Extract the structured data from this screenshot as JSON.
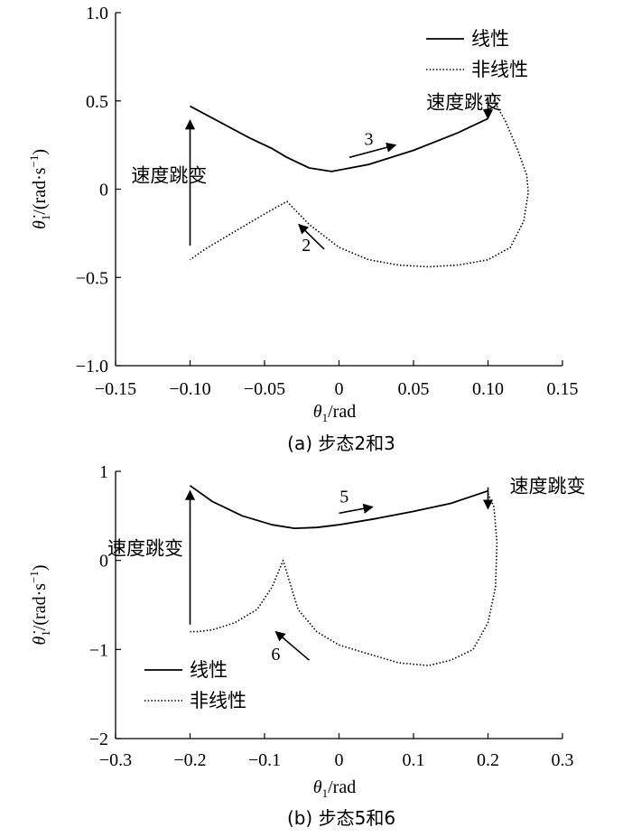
{
  "chart_data": [
    {
      "type": "line",
      "caption": "(a) 步态2和3",
      "xlabel": "θ1/rad",
      "ylabel": "θ̇1/(rad·s⁻¹)",
      "xlim": [
        -0.15,
        0.15
      ],
      "ylim": [
        -1.0,
        1.0
      ],
      "xticks": [
        "−0.15",
        "−0.10",
        "−0.05",
        "0",
        "0.05",
        "0.10",
        "0.15"
      ],
      "xtick_values": [
        -0.15,
        -0.1,
        -0.05,
        0,
        0.05,
        0.1,
        0.15
      ],
      "yticks": [
        "1.0",
        "0.5",
        "0",
        "−0.5",
        "−1.0"
      ],
      "ytick_values": [
        1.0,
        0.5,
        0,
        -0.5,
        -1.0
      ],
      "legend": [
        "线性",
        "非线性"
      ],
      "legend_position": "top-right",
      "series": [
        {
          "name": "线性",
          "style": "solid",
          "x": [
            -0.1,
            -0.08,
            -0.06,
            -0.045,
            -0.035,
            -0.02,
            -0.005,
            0.02,
            0.05,
            0.08,
            0.1
          ],
          "y": [
            0.47,
            0.38,
            0.29,
            0.23,
            0.18,
            0.12,
            0.1,
            0.14,
            0.22,
            0.32,
            0.4
          ]
        },
        {
          "name": "非线性",
          "style": "dotted",
          "x": [
            0.1,
            0.104,
            0.112,
            0.12,
            0.126,
            0.127,
            0.124,
            0.115,
            0.1,
            0.08,
            0.06,
            0.04,
            0.02,
            0.0,
            -0.02,
            -0.035,
            -0.05,
            -0.07,
            -0.09,
            -0.1
          ],
          "y": [
            0.45,
            0.5,
            0.38,
            0.22,
            0.08,
            -0.02,
            -0.18,
            -0.33,
            -0.4,
            -0.43,
            -0.44,
            -0.43,
            -0.4,
            -0.33,
            -0.2,
            -0.07,
            -0.14,
            -0.24,
            -0.34,
            -0.4
          ]
        }
      ],
      "annotations": [
        {
          "text": "速度跳变",
          "x": -0.114,
          "y": 0.04
        },
        {
          "text": "速度跳变",
          "x": 0.084,
          "y": 0.455
        },
        {
          "text": "3",
          "x": 0.02,
          "y": 0.25
        },
        {
          "text": "2",
          "x": -0.022,
          "y": -0.35
        }
      ]
    },
    {
      "type": "line",
      "caption": "(b) 步态5和6",
      "xlabel": "θ1/rad",
      "ylabel": "θ̇1/(rad·s⁻¹)",
      "xlim": [
        -0.3,
        0.3
      ],
      "ylim": [
        -2,
        1
      ],
      "xticks": [
        "−0.3",
        "−0.2",
        "−0.1",
        "0",
        "0.1",
        "0.2",
        "0.3"
      ],
      "xtick_values": [
        -0.3,
        -0.2,
        -0.1,
        0,
        0.1,
        0.2,
        0.3
      ],
      "yticks": [
        "1",
        "0",
        "−1",
        "−2"
      ],
      "ytick_values": [
        1,
        0,
        -1,
        -2
      ],
      "legend": [
        "线性",
        "非线性"
      ],
      "legend_position": "bottom-left",
      "series": [
        {
          "name": "线性",
          "style": "solid",
          "x": [
            -0.2,
            -0.17,
            -0.13,
            -0.09,
            -0.06,
            -0.03,
            0.0,
            0.05,
            0.1,
            0.15,
            0.2
          ],
          "y": [
            0.84,
            0.66,
            0.5,
            0.4,
            0.36,
            0.37,
            0.4,
            0.47,
            0.55,
            0.64,
            0.78
          ]
        },
        {
          "name": "非线性",
          "style": "dotted",
          "x": [
            0.2,
            0.208,
            0.212,
            0.21,
            0.2,
            0.18,
            0.15,
            0.12,
            0.08,
            0.04,
            0.0,
            -0.03,
            -0.055,
            -0.075,
            -0.09,
            -0.11,
            -0.14,
            -0.17,
            -0.19,
            -0.2
          ],
          "y": [
            0.75,
            0.6,
            0.2,
            -0.3,
            -0.7,
            -1.0,
            -1.12,
            -1.18,
            -1.15,
            -1.05,
            -0.95,
            -0.8,
            -0.55,
            0.0,
            -0.3,
            -0.55,
            -0.7,
            -0.78,
            -0.8,
            -0.8
          ]
        }
      ],
      "annotations": [
        {
          "text": "速度跳变",
          "x": 0.28,
          "y": 0.76
        },
        {
          "text": "速度跳变",
          "x": -0.26,
          "y": 0.06
        },
        {
          "text": "5",
          "x": 0.007,
          "y": 0.65
        },
        {
          "text": "6",
          "x": -0.085,
          "y": -1.12
        }
      ]
    }
  ]
}
